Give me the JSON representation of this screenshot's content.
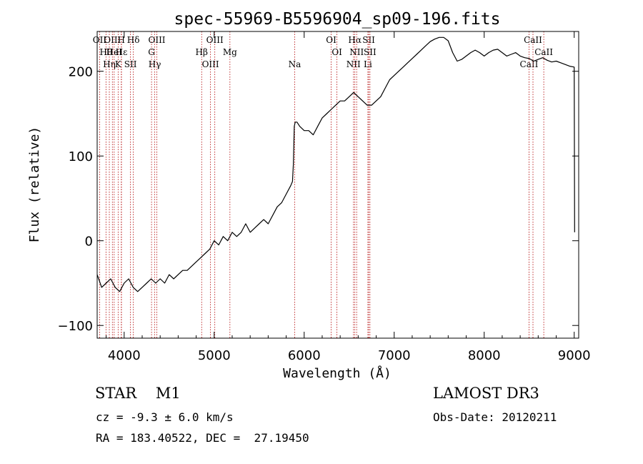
{
  "chart_data": {
    "type": "line",
    "title": "spec-55969-B5596904_sp09-196.fits",
    "xlabel": "Wavelength (Å)",
    "ylabel": "Flux (relative)",
    "xlim": [
      3700,
      9050
    ],
    "ylim": [
      -115,
      247
    ],
    "xticks": [
      4000,
      5000,
      6000,
      7000,
      8000,
      9000
    ],
    "yticks": [
      -100,
      0,
      100,
      200
    ],
    "xtick_labels": [
      "4000",
      "5000",
      "6000",
      "7000",
      "8000",
      "9000"
    ],
    "ytick_labels": [
      "−100",
      "0",
      "100",
      "200"
    ],
    "grid": false,
    "series": [
      {
        "name": "flux",
        "x": [
          3700,
          3750,
          3800,
          3850,
          3900,
          3950,
          4000,
          4050,
          4100,
          4150,
          4200,
          4250,
          4300,
          4350,
          4400,
          4450,
          4500,
          4550,
          4600,
          4650,
          4700,
          4750,
          4800,
          4850,
          4900,
          4950,
          5000,
          5050,
          5100,
          5150,
          5200,
          5250,
          5300,
          5350,
          5400,
          5450,
          5500,
          5550,
          5600,
          5650,
          5700,
          5750,
          5800,
          5850,
          5870,
          5880,
          5890,
          5900,
          5920,
          5950,
          6000,
          6050,
          6100,
          6150,
          6200,
          6250,
          6300,
          6350,
          6400,
          6450,
          6500,
          6550,
          6600,
          6650,
          6700,
          6750,
          6800,
          6850,
          6900,
          6950,
          7000,
          7050,
          7100,
          7150,
          7200,
          7250,
          7300,
          7350,
          7400,
          7450,
          7500,
          7550,
          7600,
          7650,
          7700,
          7750,
          7800,
          7850,
          7900,
          7950,
          8000,
          8050,
          8100,
          8150,
          8200,
          8250,
          8300,
          8350,
          8400,
          8450,
          8500,
          8550,
          8600,
          8650,
          8700,
          8750,
          8800,
          8850,
          8900,
          8950,
          9000,
          9005
        ],
        "y": [
          -40,
          -55,
          -50,
          -45,
          -55,
          -60,
          -50,
          -45,
          -55,
          -60,
          -55,
          -50,
          -45,
          -50,
          -45,
          -50,
          -40,
          -45,
          -40,
          -35,
          -35,
          -30,
          -25,
          -20,
          -15,
          -10,
          0,
          -5,
          5,
          0,
          10,
          5,
          10,
          20,
          10,
          15,
          20,
          25,
          20,
          30,
          40,
          45,
          55,
          65,
          70,
          90,
          135,
          140,
          140,
          135,
          130,
          130,
          125,
          135,
          145,
          150,
          155,
          160,
          165,
          165,
          170,
          175,
          170,
          165,
          160,
          160,
          165,
          170,
          180,
          190,
          195,
          200,
          205,
          210,
          215,
          220,
          225,
          230,
          235,
          238,
          240,
          240,
          236,
          222,
          212,
          214,
          218,
          222,
          225,
          222,
          218,
          222,
          225,
          226,
          222,
          218,
          220,
          222,
          218,
          216,
          215,
          212,
          214,
          216,
          213,
          211,
          212,
          210,
          208,
          206,
          205,
          10
        ]
      }
    ],
    "annotations": [
      {
        "x": 3727,
        "label": "OII"
      },
      {
        "x": 3798,
        "label": "Hθ"
      },
      {
        "x": 3835,
        "label": "Hη"
      },
      {
        "x": 3869,
        "label": "OIII"
      },
      {
        "x": 3889,
        "label": "HeI"
      },
      {
        "x": 3933,
        "label": "K"
      },
      {
        "x": 3968,
        "label": "H"
      },
      {
        "x": 3970,
        "label": "Hε"
      },
      {
        "x": 4070,
        "label": "SII"
      },
      {
        "x": 4102,
        "label": "Hδ"
      },
      {
        "x": 4304,
        "label": "G"
      },
      {
        "x": 4340,
        "label": "Hγ"
      },
      {
        "x": 4363,
        "label": "OIII"
      },
      {
        "x": 4861,
        "label": "Hβ"
      },
      {
        "x": 4959,
        "label": "OIII"
      },
      {
        "x": 5007,
        "label": "OIII"
      },
      {
        "x": 5175,
        "label": "Mg"
      },
      {
        "x": 5894,
        "label": "Na"
      },
      {
        "x": 6300,
        "label": "OI"
      },
      {
        "x": 6364,
        "label": "OI"
      },
      {
        "x": 6548,
        "label": "NII"
      },
      {
        "x": 6563,
        "label": "Hα"
      },
      {
        "x": 6583,
        "label": "NII"
      },
      {
        "x": 6708,
        "label": "Li"
      },
      {
        "x": 6717,
        "label": "SII"
      },
      {
        "x": 6731,
        "label": "SII"
      },
      {
        "x": 8498,
        "label": "CaII"
      },
      {
        "x": 8542,
        "label": "CaII"
      },
      {
        "x": 8662,
        "label": "CaII"
      }
    ]
  },
  "meta": {
    "class_line": "STAR    M1",
    "survey": "LAMOST DR3",
    "cz_line": "cz = -9.3 ± 6.0 km/s",
    "obs_date": "Obs-Date: 20120211",
    "coords": "RA = 183.40522, DEC =  27.19450"
  }
}
